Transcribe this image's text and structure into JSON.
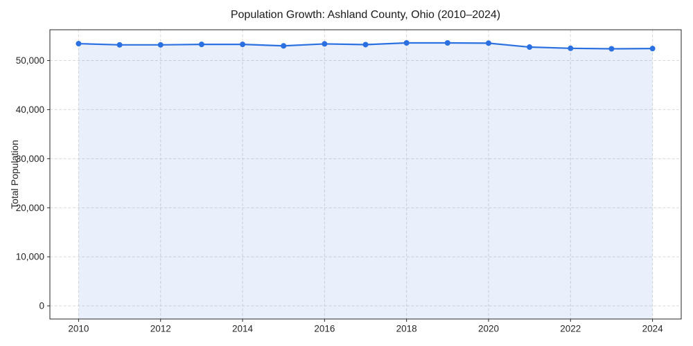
{
  "figure": {
    "title": "Population Growth: Ashland County, Ohio (2010–2024)",
    "ylabel": "Total Population"
  },
  "chart_data": {
    "type": "line",
    "title": "Population Growth: Ashland County, Ohio (2010–2024)",
    "xlabel": "",
    "ylabel": "Total Population",
    "x": [
      2010,
      2011,
      2012,
      2013,
      2014,
      2015,
      2016,
      2017,
      2018,
      2019,
      2020,
      2021,
      2022,
      2023,
      2024
    ],
    "series": [
      {
        "name": "Total Population",
        "values": [
          53450,
          53200,
          53200,
          53300,
          53300,
          53000,
          53400,
          53250,
          53600,
          53600,
          53550,
          52750,
          52500,
          52400,
          52450
        ]
      }
    ],
    "xticks": {
      "values": [
        2010,
        2012,
        2014,
        2016,
        2018,
        2020,
        2022,
        2024
      ],
      "labels": [
        "2010",
        "2012",
        "2014",
        "2016",
        "2018",
        "2020",
        "2022",
        "2024"
      ]
    },
    "yticks": {
      "values": [
        0,
        10000,
        20000,
        30000,
        40000,
        50000
      ],
      "labels": [
        "0",
        "10,000",
        "20,000",
        "30,000",
        "40,000",
        "50,000"
      ]
    },
    "xlim": [
      2009.3,
      2024.7
    ],
    "ylim": [
      -2680,
      56280
    ],
    "grid": true,
    "legend": "none",
    "style": {
      "line_color": "#2a70e0",
      "marker_color": "#2a70e0",
      "fill_color": "rgba(42,112,224,0.10)",
      "grid_color": "#d9d9d9",
      "spine_color": "#262626",
      "tick_color": "#262626",
      "tick_label_color": "#262626",
      "title_color": "#1a1a1a",
      "line_width": 2.2,
      "marker_radius": 4
    }
  }
}
